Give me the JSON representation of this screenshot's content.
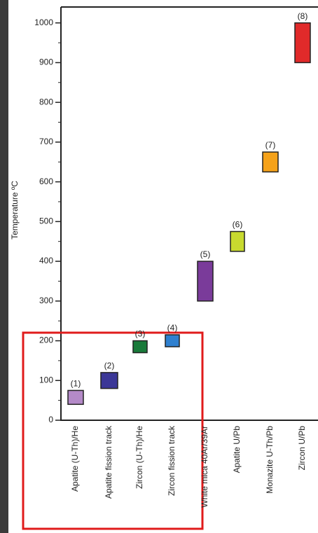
{
  "chart_data": {
    "type": "floating-bar",
    "y_label": "Temperature ºC",
    "categories": [
      "Apatite (U-Th)/He",
      "Apatite fission track",
      "Zircon (U-Th)/He",
      "Zircon fission track",
      "White mica 40Ar/39Ar",
      "Apatite U/Pb",
      "Monazite U-Th/Pb",
      "Zircon U/Pb"
    ],
    "values": [
      [
        40,
        75
      ],
      [
        80,
        120
      ],
      [
        170,
        200
      ],
      [
        185,
        215
      ],
      [
        300,
        400
      ],
      [
        425,
        475
      ],
      [
        625,
        675
      ],
      [
        900,
        1000
      ]
    ],
    "bar_labels": [
      "(1)",
      "(2)",
      "(3)",
      "(4)",
      "(5)",
      "(6)",
      "(7)",
      "(8)"
    ],
    "colors": [
      "#b48ac8",
      "#3b3797",
      "#197a3a",
      "#2f80cf",
      "#7a3b9a",
      "#c8da2f",
      "#f5a21a",
      "#e12a2a"
    ],
    "ylim": [
      0,
      1040
    ],
    "yticks": [
      0,
      100,
      200,
      300,
      400,
      500,
      600,
      700,
      800,
      900,
      1000
    ],
    "minor_yticks": [
      50,
      150,
      250,
      350,
      450,
      550,
      650,
      750,
      850,
      950
    ]
  }
}
